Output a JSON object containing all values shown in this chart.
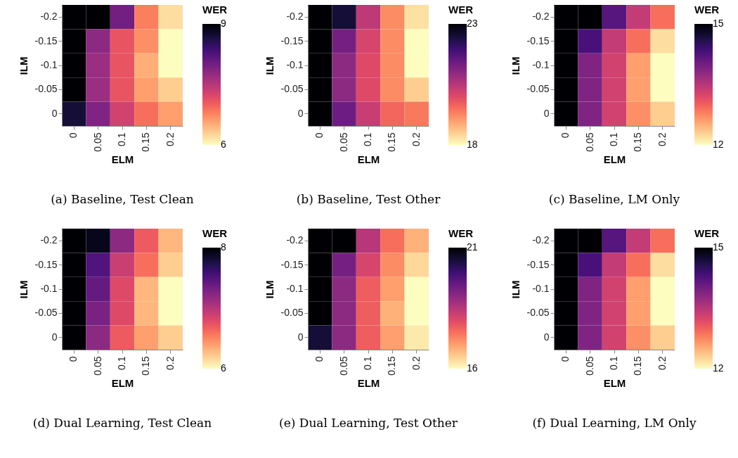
{
  "chart_data": [
    {
      "type": "heatmap",
      "title": "(a) Baseline, Test Clean",
      "xlabel": "ELM",
      "ylabel": "ILM",
      "clabel": "WER",
      "categories": [
        "0",
        "0.05",
        "0.1",
        "0.15",
        "0.2"
      ],
      "y_categories": [
        "-0.2",
        "-0.15",
        "-0.1",
        "-0.05",
        "0"
      ],
      "clim": [
        6,
        9
      ],
      "cticks": [
        6,
        9
      ],
      "cells": [
        [
          9,
          9,
          8.0,
          6.8,
          6.2
        ],
        [
          9,
          7.8,
          7.1,
          6.7,
          6.0
        ],
        [
          9,
          7.7,
          7.1,
          6.5,
          6.0
        ],
        [
          9,
          7.7,
          7.1,
          6.6,
          6.3
        ],
        [
          8.7,
          7.9,
          7.3,
          6.9,
          6.6
        ]
      ]
    },
    {
      "type": "heatmap",
      "title": "(b) Baseline, Test Other",
      "xlabel": "ELM",
      "ylabel": "ILM",
      "clabel": "WER",
      "categories": [
        "0",
        "0.05",
        "0.1",
        "0.15",
        "0.2"
      ],
      "y_categories": [
        "-0.2",
        "-0.15",
        "-0.1",
        "-0.05",
        "0"
      ],
      "clim": [
        18,
        23
      ],
      "cticks": [
        18,
        23
      ],
      "cells": [
        [
          23,
          22.5,
          20.4,
          19.2,
          18.3
        ],
        [
          23,
          21.3,
          20.1,
          19.2,
          18.0
        ],
        [
          23,
          21.0,
          20.0,
          19.2,
          18.0
        ],
        [
          23,
          21.0,
          20.0,
          19.2,
          18.5
        ],
        [
          23,
          21.4,
          20.3,
          19.6,
          19.4
        ]
      ]
    },
    {
      "type": "heatmap",
      "title": "(c) Baseline, LM Only",
      "xlabel": "ELM",
      "ylabel": "ILM",
      "clabel": "WER",
      "categories": [
        "0",
        "0.05",
        "0.1",
        "0.15",
        "0.2"
      ],
      "y_categories": [
        "-0.2",
        "-0.15",
        "-0.1",
        "-0.05",
        "0"
      ],
      "clim": [
        12,
        15
      ],
      "cticks": [
        12,
        15
      ],
      "cells": [
        [
          15,
          15,
          14.2,
          13.4,
          12.9
        ],
        [
          15,
          14.3,
          13.4,
          12.9,
          12.2
        ],
        [
          15,
          13.9,
          13.3,
          12.6,
          12.0
        ],
        [
          15,
          13.9,
          13.3,
          12.6,
          12.0
        ],
        [
          15,
          13.9,
          13.3,
          12.7,
          12.3
        ]
      ]
    },
    {
      "type": "heatmap",
      "title": "(d) Dual Learning, Test Clean",
      "xlabel": "ELM",
      "ylabel": "ILM",
      "clabel": "WER",
      "categories": [
        "0",
        "0.05",
        "0.1",
        "0.15",
        "0.2"
      ],
      "y_categories": [
        "-0.2",
        "-0.15",
        "-0.1",
        "-0.05",
        "0"
      ],
      "clim": [
        6,
        8
      ],
      "cticks": [
        6,
        8
      ],
      "cells": [
        [
          8,
          7.9,
          7.2,
          6.7,
          6.3
        ],
        [
          8,
          7.5,
          6.9,
          6.6,
          6.2
        ],
        [
          8,
          7.4,
          6.8,
          6.3,
          6.0
        ],
        [
          8,
          7.3,
          6.8,
          6.3,
          6.0
        ],
        [
          8,
          7.2,
          6.7,
          6.4,
          6.2
        ]
      ]
    },
    {
      "type": "heatmap",
      "title": "(e) Dual Learning, Test Other",
      "xlabel": "ELM",
      "ylabel": "ILM",
      "clabel": "WER",
      "categories": [
        "0",
        "0.05",
        "0.1",
        "0.15",
        "0.2"
      ],
      "y_categories": [
        "-0.2",
        "-0.15",
        "-0.1",
        "-0.05",
        "0"
      ],
      "clim": [
        16,
        21
      ],
      "cticks": [
        16,
        21
      ],
      "cells": [
        [
          21,
          21,
          18.5,
          17.5,
          16.8
        ],
        [
          21,
          19.3,
          18.1,
          17.2,
          16.4
        ],
        [
          21,
          19.0,
          17.7,
          17.0,
          16.0
        ],
        [
          21,
          19.0,
          17.7,
          16.8,
          16.0
        ],
        [
          20.5,
          19.0,
          17.7,
          17.0,
          16.2
        ]
      ]
    },
    {
      "type": "heatmap",
      "title": "(f) Dual Learning, LM Only",
      "xlabel": "ELM",
      "ylabel": "ILM",
      "clabel": "WER",
      "categories": [
        "0",
        "0.05",
        "0.1",
        "0.15",
        "0.2"
      ],
      "y_categories": [
        "-0.2",
        "-0.15",
        "-0.1",
        "-0.05",
        "0"
      ],
      "clim": [
        12,
        15
      ],
      "cticks": [
        12,
        15
      ],
      "cells": [
        [
          15,
          15,
          14.2,
          13.4,
          12.9
        ],
        [
          15,
          14.3,
          13.4,
          12.9,
          12.2
        ],
        [
          15,
          13.9,
          13.3,
          12.6,
          12.0
        ],
        [
          15,
          13.9,
          13.3,
          12.6,
          12.0
        ],
        [
          15,
          13.9,
          13.3,
          12.7,
          12.3
        ]
      ]
    }
  ]
}
